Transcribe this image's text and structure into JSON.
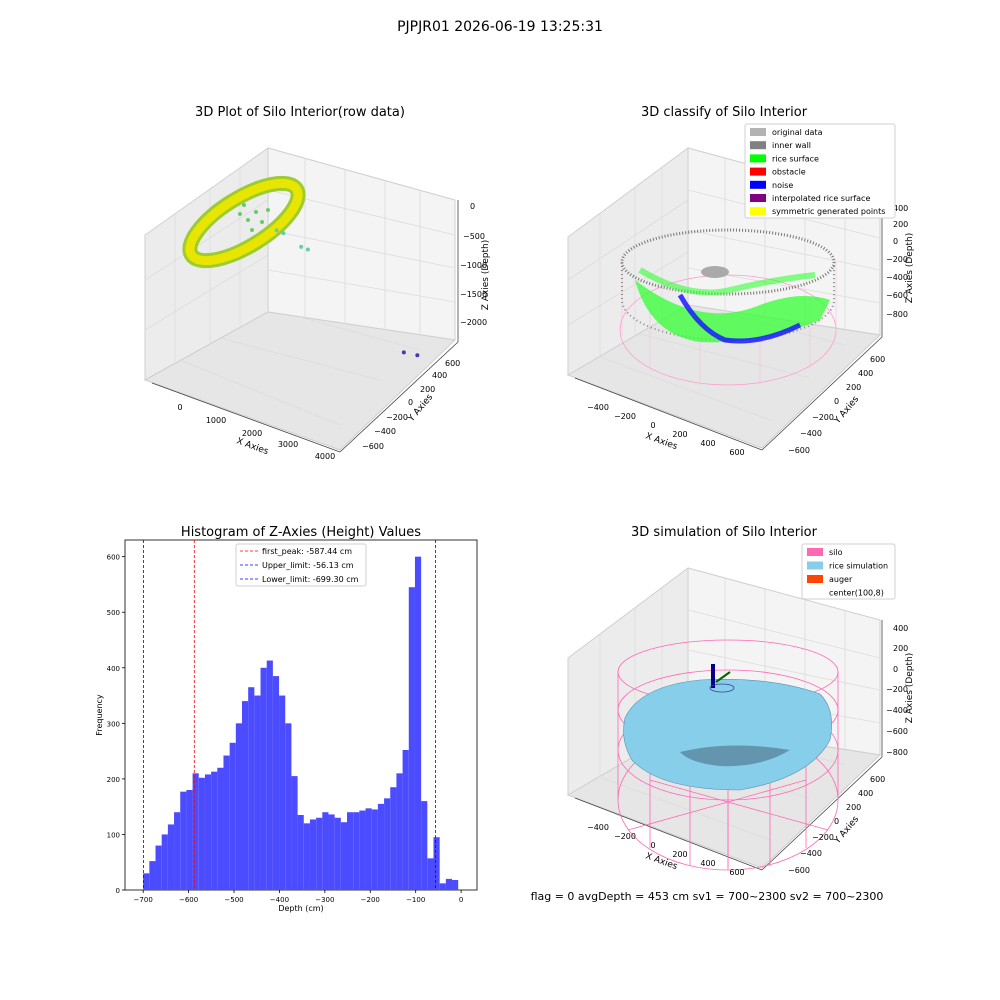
{
  "suptitle": "PJPJR01 2026-06-19 13:25:31",
  "status_line": "flag = 0     avgDepth = 453 cm  sv1 = 700~2300  sv2 = 700~2300",
  "colors": {
    "bar": "#4b4bff",
    "raw_points": "#d8e400",
    "inner_wall": "#888888",
    "rice_surface": "#00ff00",
    "noise": "#0000dd",
    "silo_wire": "#ff69b4",
    "rice_sim": "#87ceeb",
    "auger": "#ff4500"
  },
  "chart_data": [
    {
      "type": "scatter",
      "title": "3D Plot of Silo Interior(row data)",
      "xlabel": "X Axies",
      "ylabel": "Y Axies",
      "zlabel": "Z Axies (Depth)",
      "x_ticks": [
        "0",
        "1000",
        "2000",
        "3000",
        "4000"
      ],
      "y_ticks": [
        "600",
        "400",
        "200",
        "0",
        "−200",
        "−400",
        "−600"
      ],
      "z_ticks": [
        "0",
        "−500",
        "−1000",
        "−1500",
        "−2000"
      ],
      "outliers": [
        {
          "x": 250,
          "y": 600,
          "z": -700
        },
        {
          "x": 400,
          "y": 600,
          "z": -720
        },
        {
          "x": 900,
          "y": 550,
          "z": -800
        },
        {
          "x": 1050,
          "y": 550,
          "z": -820
        },
        {
          "x": 3700,
          "y": 300,
          "z": -1900
        },
        {
          "x": 3900,
          "y": 350,
          "z": -2000
        }
      ]
    },
    {
      "type": "scatter",
      "title": "3D classify of Silo Interior",
      "xlabel": "X Axies",
      "ylabel": "Y Axies",
      "zlabel": "Z Axies (Depth)",
      "x_ticks": [
        "−400",
        "−200",
        "0",
        "200",
        "400",
        "600"
      ],
      "y_ticks": [
        "600",
        "400",
        "200",
        "0",
        "−200",
        "−400",
        "−600"
      ],
      "z_ticks": [
        "400",
        "200",
        "0",
        "−200",
        "−400",
        "−600",
        "−800"
      ],
      "legend": [
        {
          "label": "original data",
          "color": "#b3b3b3"
        },
        {
          "label": "inner wall",
          "color": "#808080"
        },
        {
          "label": "rice surface",
          "color": "#00ff00"
        },
        {
          "label": "obstacle",
          "color": "#ff0000"
        },
        {
          "label": "noise",
          "color": "#0000ff"
        },
        {
          "label": "interpolated rice surface",
          "color": "#800080"
        },
        {
          "label": "symmetric generated points",
          "color": "#ffff00"
        }
      ]
    },
    {
      "type": "bar",
      "title": "Histogram of Z-Axies (Height) Values",
      "xlabel": "Depth (cm)",
      "ylabel": "Frequency",
      "xlim": [
        -740,
        35
      ],
      "ylim": [
        0,
        630
      ],
      "x_ticks": [
        -700,
        -600,
        -500,
        -400,
        -300,
        -200,
        -100,
        0
      ],
      "y_ticks": [
        0,
        100,
        200,
        300,
        400,
        500,
        600
      ],
      "bin_start": -700,
      "bin_width": 13.6,
      "values": [
        30,
        52,
        80,
        100,
        118,
        140,
        177,
        180,
        210,
        202,
        208,
        213,
        220,
        242,
        265,
        300,
        340,
        365,
        350,
        400,
        413,
        385,
        350,
        300,
        205,
        135,
        120,
        127,
        130,
        140,
        136,
        130,
        122,
        140,
        140,
        143,
        147,
        145,
        155,
        165,
        185,
        210,
        252,
        545,
        600,
        160,
        57,
        95,
        12,
        20,
        18
      ],
      "vlines": [
        {
          "label": "first_peak: -587.44 cm",
          "value": -587.44,
          "color": "#ff0000"
        },
        {
          "label": "Upper_limit: -56.13 cm",
          "value": -56.13,
          "color": "#0000ff"
        },
        {
          "label": "Lower_limit: -699.30 cm",
          "value": -699.3,
          "color": "#0000ff"
        }
      ]
    },
    {
      "type": "area",
      "title": "3D simulation of Silo Interior",
      "xlabel": "X Axies",
      "ylabel": "Y Axies",
      "zlabel": "Z Axies (Depth)",
      "x_ticks": [
        "−400",
        "−200",
        "0",
        "200",
        "400",
        "600"
      ],
      "y_ticks": [
        "600",
        "400",
        "200",
        "0",
        "−200",
        "−400",
        "−600"
      ],
      "z_ticks": [
        "400",
        "200",
        "0",
        "−200",
        "−400",
        "−600",
        "−800"
      ],
      "legend": [
        {
          "label": "silo",
          "color": "#ff69b4"
        },
        {
          "label": "rice simulation",
          "color": "#87ceeb"
        },
        {
          "label": "auger",
          "color": "#ff4500"
        },
        {
          "label": "center(100,8)",
          "color": ""
        }
      ]
    }
  ]
}
